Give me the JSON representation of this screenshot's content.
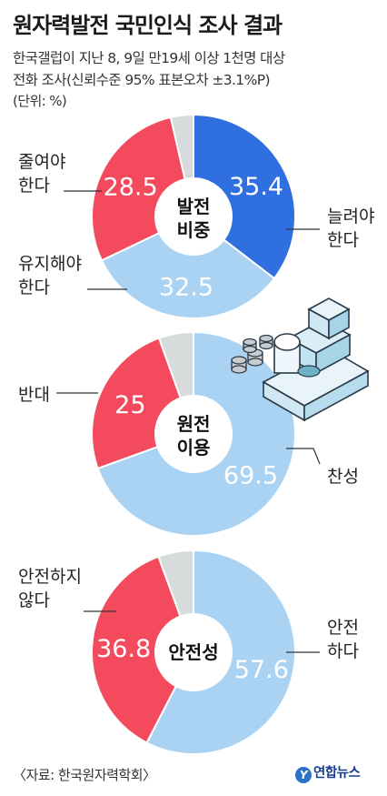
{
  "title": "원자력발전 국민인식 조사 결과",
  "subtitle_line1": "한국갤럽이 지난 8, 9일 만19세 이상 1천명 대상",
  "subtitle_line2": "전화 조사(신뢰수준 95% 표본오차 ±3.1%P)",
  "unit": "(단위: %)",
  "source": "〈자료: 한국원자력학회〉",
  "brand": "연합뉴스",
  "brand_logo_letter": "Y",
  "colors": {
    "blue_dark": "#2f6fe0",
    "blue_light": "#a9d2f3",
    "red": "#f44a5e",
    "gray": "#d7dbdc"
  },
  "chart_data": [
    {
      "type": "pie",
      "title": "발전 비중",
      "title_lines": [
        "발전",
        "비중"
      ],
      "slices": [
        {
          "label": "늘려야 한다",
          "label_lines": [
            "늘려야",
            "한다"
          ],
          "value": 35.4,
          "value_text": "35.4",
          "color": "#2f6fe0"
        },
        {
          "label": "유지해야 한다",
          "label_lines": [
            "유지해야",
            "한다"
          ],
          "value": 32.5,
          "value_text": "32.5",
          "color": "#a9d2f3"
        },
        {
          "label": "줄여야 한다",
          "label_lines": [
            "줄여야",
            "한다"
          ],
          "value": 28.5,
          "value_text": "28.5",
          "color": "#f44a5e"
        },
        {
          "label": "",
          "label_lines": [],
          "value": 3.6,
          "value_text": "",
          "color": "#d7dbdc"
        }
      ]
    },
    {
      "type": "pie",
      "title": "원전 이용",
      "title_lines": [
        "원전",
        "이용"
      ],
      "slices": [
        {
          "label": "찬성",
          "label_lines": [
            "찬성"
          ],
          "value": 69.5,
          "value_text": "69.5",
          "color": "#a9d2f3"
        },
        {
          "label": "반대",
          "label_lines": [
            "반대"
          ],
          "value": 25,
          "value_text": "25",
          "color": "#f44a5e"
        },
        {
          "label": "",
          "label_lines": [],
          "value": 5.5,
          "value_text": "",
          "color": "#d7dbdc"
        }
      ]
    },
    {
      "type": "pie",
      "title": "안전성",
      "title_lines": [
        "안전성"
      ],
      "slices": [
        {
          "label": "안전 하다",
          "label_lines": [
            "안전",
            "하다"
          ],
          "value": 57.6,
          "value_text": "57.6",
          "color": "#a9d2f3"
        },
        {
          "label": "안전하지 않다",
          "label_lines": [
            "안전하지",
            "않다"
          ],
          "value": 36.8,
          "value_text": "36.8",
          "color": "#f44a5e"
        },
        {
          "label": "",
          "label_lines": [],
          "value": 5.6,
          "value_text": "",
          "color": "#d7dbdc"
        }
      ]
    }
  ]
}
